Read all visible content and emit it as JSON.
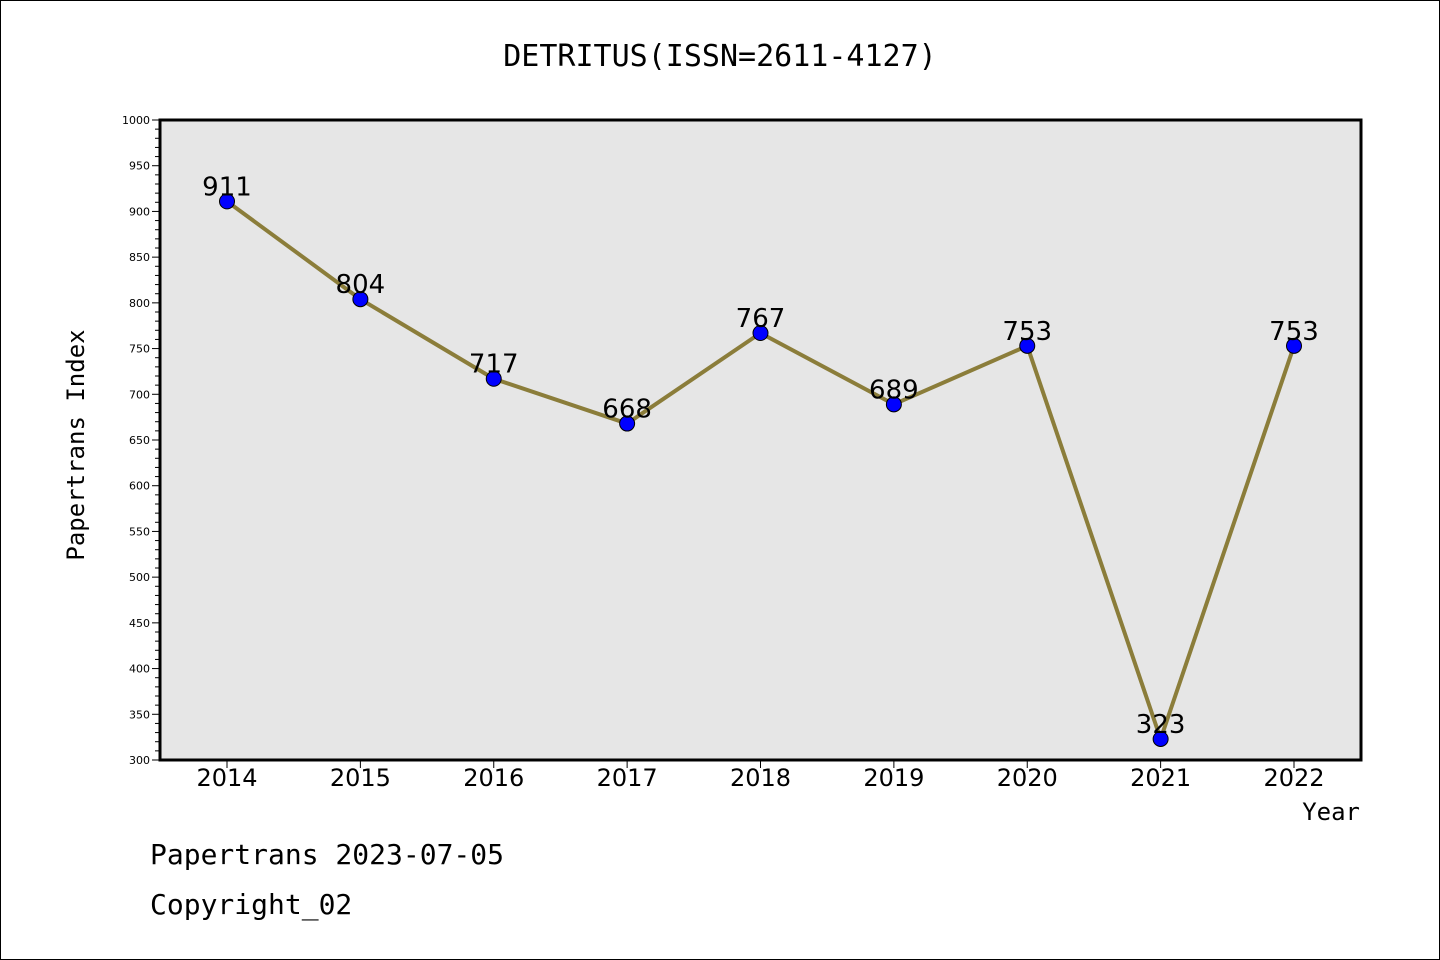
{
  "chart_data": {
    "type": "line",
    "title": "DETRITUS(ISSN=2611-4127)",
    "xlabel": "Year",
    "ylabel": "Papertrans Index",
    "categories": [
      "2014",
      "2015",
      "2016",
      "2017",
      "2018",
      "2019",
      "2020",
      "2021",
      "2022"
    ],
    "values": [
      911,
      804,
      717,
      668,
      767,
      689,
      753,
      323,
      753
    ],
    "ylim": [
      300,
      1000
    ],
    "yticks": [
      300,
      350,
      400,
      450,
      500,
      550,
      600,
      650,
      700,
      750,
      800,
      850,
      900,
      950,
      1000
    ],
    "grid": false,
    "line_color": "#8b7d3a",
    "marker_color": "#0000ff",
    "plot_background": "#e6e6e6"
  },
  "footer": {
    "line1": "Papertrans 2023-07-05",
    "line2": "Copyright_02"
  }
}
